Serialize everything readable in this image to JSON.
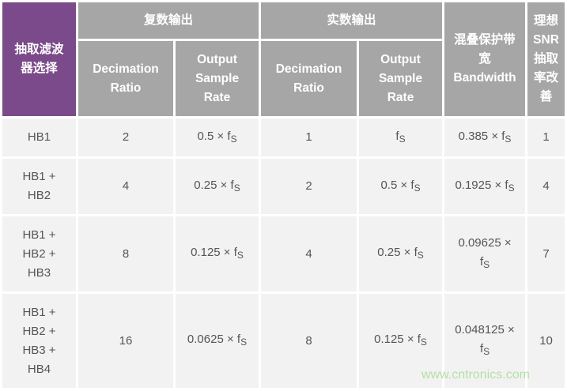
{
  "header": {
    "filter_select": "抽取滤波器选择",
    "complex_output": "复数输出",
    "real_output": "实数输出",
    "decimation_ratio": "Decimation Ratio",
    "output_sample_rate": "Output Sample Rate",
    "alias_bandwidth": "混叠保护带宽 Bandwidth",
    "snr_improvement": "理想SNR抽取率改善"
  },
  "rows": [
    {
      "filter": "HB1",
      "c_ratio": "2",
      "c_rate": "0.5 × f",
      "r_ratio": "1",
      "r_rate": "f",
      "bw": "0.385 × f",
      "snr": "1"
    },
    {
      "filter": "HB1 + HB2",
      "c_ratio": "4",
      "c_rate": "0.25 × f",
      "r_ratio": "2",
      "r_rate": "0.5 × f",
      "bw": "0.1925 × f",
      "snr": "4"
    },
    {
      "filter": "HB1 + HB2 + HB3",
      "c_ratio": "8",
      "c_rate": "0.125 × f",
      "r_ratio": "4",
      "r_rate": "0.25 × f",
      "bw": "0.09625 × f",
      "snr": "7"
    },
    {
      "filter": "HB1 + HB2 + HB3 + HB4",
      "c_ratio": "16",
      "c_rate": "0.0625 × f",
      "r_ratio": "8",
      "r_rate": "0.125 × f",
      "bw": "0.048125 × f",
      "snr": "10"
    }
  ],
  "subscript": "S",
  "watermark": "www.cntronics.com",
  "colors": {
    "purple": "#7b4a8a",
    "header_gray": "#a6a6a6",
    "cell_bg": "#f2f2f2"
  }
}
